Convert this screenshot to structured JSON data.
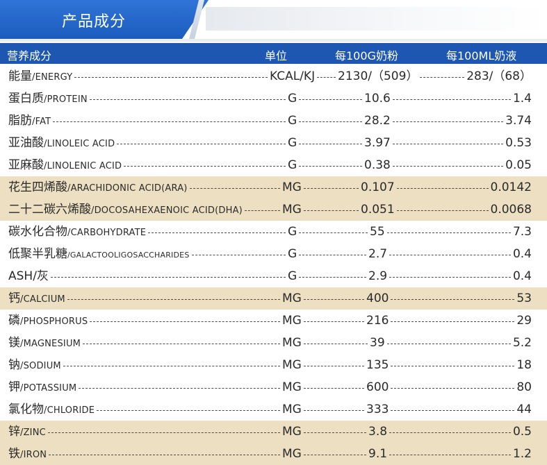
{
  "header": {
    "title": "产品成分"
  },
  "columns": {
    "nutrient": "营养成分",
    "unit": "单位",
    "per_powder": "每100G奶粉",
    "per_liquid": "每100ML奶液"
  },
  "rows": [
    {
      "cn": "能量",
      "en": "/ENERGY",
      "unit": "KCAL/KJ",
      "v1": "2130/（509）",
      "v2": "283/（68）",
      "hl": false
    },
    {
      "cn": "蛋白质",
      "en": "/PROTEIN",
      "unit": "G",
      "v1": "10.6",
      "v2": "1.4",
      "hl": false
    },
    {
      "cn": "脂肪",
      "en": "/FAT",
      "unit": "G",
      "v1": "28.2",
      "v2": "3.74",
      "hl": false
    },
    {
      "cn": "亚油酸",
      "en": "/LINOLEIC ACID",
      "unit": "G",
      "v1": "3.97",
      "v2": "0.53",
      "hl": false
    },
    {
      "cn": "亚麻酸",
      "en": "/LINOLENIC ACID",
      "unit": "G",
      "v1": "0.38",
      "v2": "0.05",
      "hl": false
    },
    {
      "cn": "花生四烯酸",
      "en": "/ARACHIDONIC ACID(ARA)",
      "unit": "MG",
      "v1": "0.107",
      "v2": "0.0142",
      "hl": true
    },
    {
      "cn": "二十二碳六烯酸",
      "en": "/DOCOSAHEXAENOIC ACID(DHA)",
      "unit": "MG",
      "v1": "0.051",
      "v2": "0.0068",
      "hl": true
    },
    {
      "cn": "碳水化合物",
      "en": "/CARBOHYDRATE",
      "unit": "G",
      "v1": "55",
      "v2": "7.3",
      "hl": false
    },
    {
      "cn": "低聚半乳糖",
      "en": "/GALACTOOLIGOSACCHARIDES",
      "unit": "G",
      "v1": "2.7",
      "v2": "0.4",
      "hl": false
    },
    {
      "cn": "ASH/灰",
      "en": "",
      "unit": "G",
      "v1": "2.9",
      "v2": "0.4",
      "hl": false
    },
    {
      "cn": "钙",
      "en": "/CALCIUM",
      "unit": "MG",
      "v1": "400",
      "v2": "53",
      "hl": true
    },
    {
      "cn": "磷",
      "en": "/PHOSPHORUS",
      "unit": "MG",
      "v1": "216",
      "v2": "29",
      "hl": false
    },
    {
      "cn": "镁",
      "en": "/MAGNESIUM",
      "unit": "MG",
      "v1": "39",
      "v2": "5.2",
      "hl": false
    },
    {
      "cn": "钠",
      "en": "/SODIUM",
      "unit": "MG",
      "v1": "135",
      "v2": "18",
      "hl": false
    },
    {
      "cn": "钾",
      "en": "/POTASSIUM",
      "unit": "MG",
      "v1": "600",
      "v2": "80",
      "hl": false
    },
    {
      "cn": "氯化物",
      "en": "/CHLORIDE",
      "unit": "MG",
      "v1": "333",
      "v2": "44",
      "hl": false
    },
    {
      "cn": "锌",
      "en": "/ZINC",
      "unit": "MG",
      "v1": "3.8",
      "v2": "0.5",
      "hl": true
    },
    {
      "cn": "铁",
      "en": "/IRON",
      "unit": "MG",
      "v1": "9.1",
      "v2": "1.2",
      "hl": true
    }
  ]
}
